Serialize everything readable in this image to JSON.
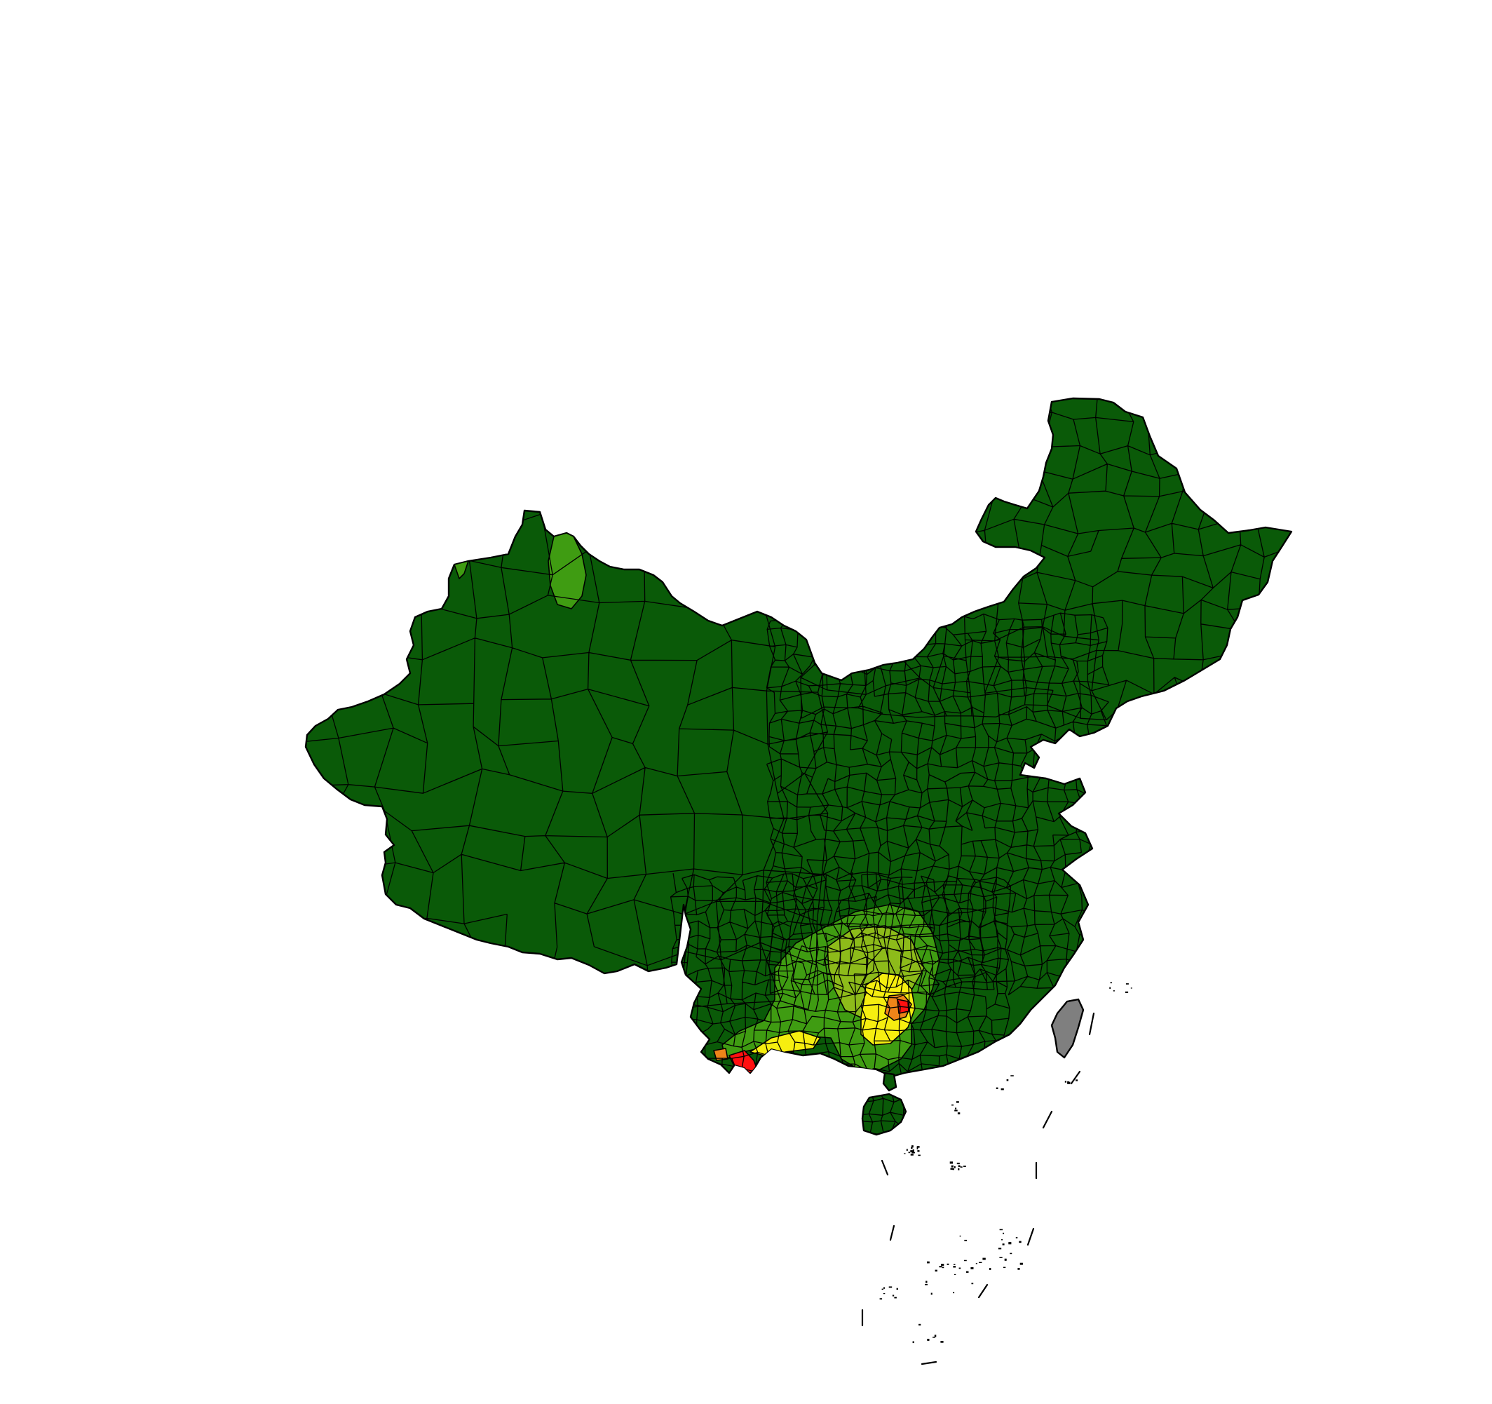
{
  "map": {
    "kind": "choropleth",
    "region_level": "county",
    "legend": null,
    "title": "",
    "colors": {
      "base": "#0a5a08",
      "light_green": "#3f9c12",
      "yellow_green": "#8dbb1a",
      "yellow": "#f6ee10",
      "orange": "#ee8419",
      "red": "#ff1010",
      "no_data": "#7f7f7f",
      "outline": "#000000",
      "background": "#ffffff"
    },
    "classes": [
      {
        "color": "#0a5a08",
        "label": ""
      },
      {
        "color": "#3f9c12",
        "label": ""
      },
      {
        "color": "#8dbb1a",
        "label": ""
      },
      {
        "color": "#f6ee10",
        "label": ""
      },
      {
        "color": "#ee8419",
        "label": ""
      },
      {
        "color": "#ff1010",
        "label": ""
      }
    ]
  }
}
